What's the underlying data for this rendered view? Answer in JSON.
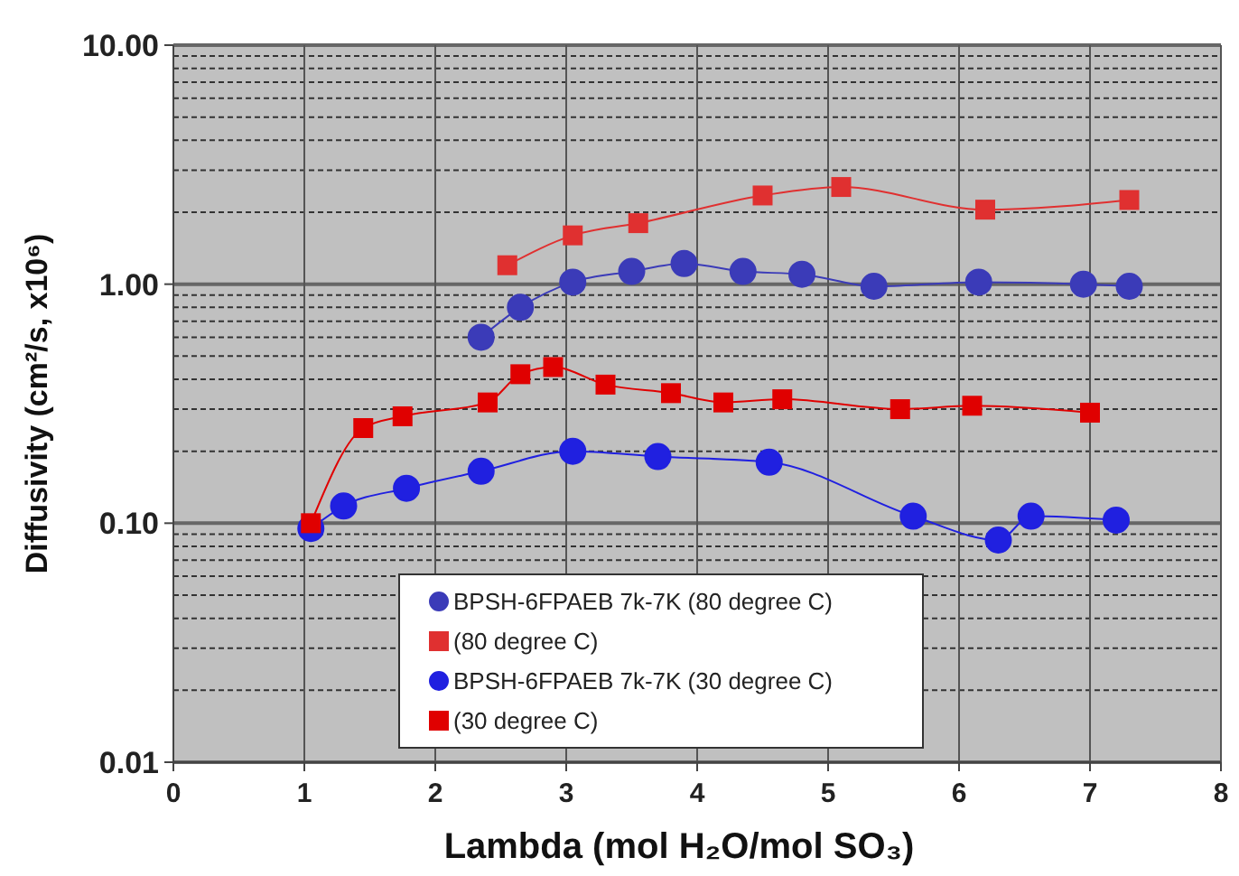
{
  "chart_data": {
    "type": "line",
    "xlabel": "Lambda  (mol H₂O/mol SO₃)",
    "ylabel": "Diffusivity (cm²/s, x10⁶)",
    "log": "y",
    "grid": true,
    "legend": "bottom",
    "xlim": [
      0,
      8
    ],
    "xticks": [
      0,
      1,
      2,
      3,
      4,
      5,
      6,
      7,
      8
    ],
    "ylim": [
      0.01,
      10
    ],
    "yticks": [
      {
        "value": 0.01,
        "label": "0.01"
      },
      {
        "value": 0.02,
        "label": null
      },
      {
        "value": 0.03,
        "label": null
      },
      {
        "value": 0.04,
        "label": null
      },
      {
        "value": 0.05,
        "label": null
      },
      {
        "value": 0.06,
        "label": null
      },
      {
        "value": 0.07,
        "label": null
      },
      {
        "value": 0.08,
        "label": null
      },
      {
        "value": 0.09,
        "label": null
      },
      {
        "value": 0.1,
        "label": "0.10"
      },
      {
        "value": 0.2,
        "label": null
      },
      {
        "value": 0.3,
        "label": null
      },
      {
        "value": 0.4,
        "label": null
      },
      {
        "value": 0.5,
        "label": null
      },
      {
        "value": 0.6,
        "label": null
      },
      {
        "value": 0.7,
        "label": null
      },
      {
        "value": 0.8,
        "label": null
      },
      {
        "value": 0.9,
        "label": null
      },
      {
        "value": 1,
        "label": "1.00"
      },
      {
        "value": 2,
        "label": null
      },
      {
        "value": 3,
        "label": null
      },
      {
        "value": 4,
        "label": null
      },
      {
        "value": 5,
        "label": null
      },
      {
        "value": 6,
        "label": null
      },
      {
        "value": 7,
        "label": null
      },
      {
        "value": 8,
        "label": null
      },
      {
        "value": 9,
        "label": null
      },
      {
        "value": 10,
        "label": "10.00"
      }
    ],
    "series": [
      {
        "name": "BPSH-6FPAEB 7k-7K (80 degree C)",
        "color": "#3b3bb8",
        "marker": "circle",
        "x": [
          2.35,
          2.65,
          3.05,
          3.5,
          3.9,
          4.35,
          4.8,
          5.35,
          6.15,
          6.95,
          7.3
        ],
        "values": [
          0.6,
          0.8,
          1.02,
          1.13,
          1.22,
          1.13,
          1.1,
          0.98,
          1.02,
          1.0,
          0.98
        ]
      },
      {
        "name": "(80 degree C)",
        "color": "#e03030",
        "marker": "square",
        "x": [
          2.55,
          3.05,
          3.55,
          4.5,
          5.1,
          6.2,
          7.3
        ],
        "values": [
          1.2,
          1.6,
          1.8,
          2.35,
          2.55,
          2.05,
          2.25
        ]
      },
      {
        "name": "BPSH-6FPAEB 7k-7K (30 degree C)",
        "color": "#2020e0",
        "marker": "circle",
        "x": [
          1.05,
          1.3,
          1.78,
          2.35,
          3.05,
          3.7,
          4.55,
          5.65,
          6.3,
          6.55,
          7.2
        ],
        "values": [
          0.095,
          0.118,
          0.14,
          0.165,
          0.2,
          0.19,
          0.18,
          0.107,
          0.085,
          0.107,
          0.103
        ]
      },
      {
        "name": "(30 degree C)",
        "color": "#e00000",
        "marker": "square",
        "x": [
          1.05,
          1.45,
          1.75,
          2.4,
          2.65,
          2.9,
          3.3,
          3.8,
          4.2,
          4.65,
          5.55,
          6.1,
          7.0
        ],
        "values": [
          0.1,
          0.25,
          0.28,
          0.32,
          0.42,
          0.45,
          0.38,
          0.35,
          0.32,
          0.33,
          0.3,
          0.31,
          0.29
        ]
      }
    ]
  }
}
